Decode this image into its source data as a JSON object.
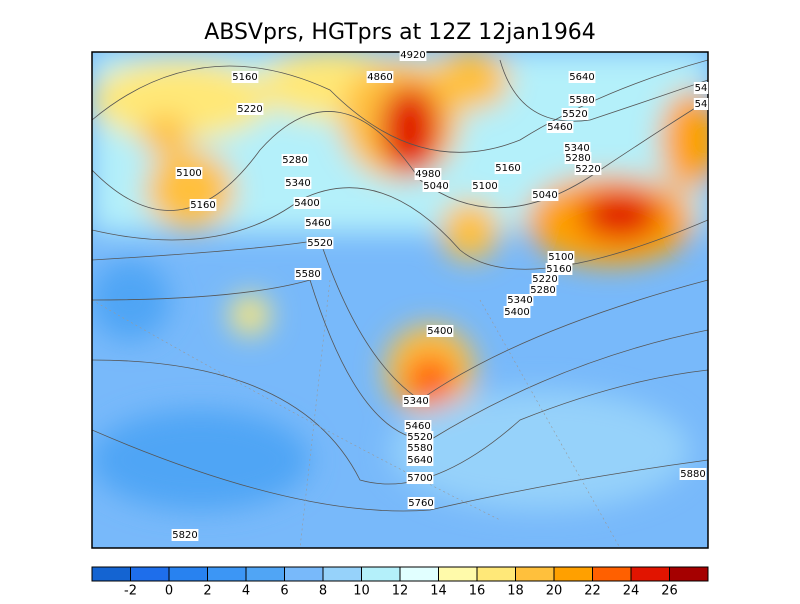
{
  "title": "ABSVprs, HGTprs at 12Z  12jan1964",
  "contour_labels": [
    "4920",
    "5160",
    "4860",
    "5640",
    "5580",
    "5220",
    "5520",
    "5460",
    "54",
    "54",
    "5340",
    "5280",
    "5220",
    "5280",
    "5160",
    "5100",
    "4980",
    "5040",
    "5100",
    "5040",
    "5340",
    "5160",
    "5400",
    "5460",
    "5520",
    "5100",
    "5160",
    "5220",
    "5280",
    "5580",
    "5340",
    "5400",
    "5400",
    "5340",
    "5460",
    "5520",
    "5580",
    "5640",
    "5700",
    "5880",
    "5760",
    "5820"
  ],
  "colorbar": {
    "colors": [
      "#1464d2",
      "#1e6eeb",
      "#2882f0",
      "#3c96f5",
      "#50a5f5",
      "#78b9fa",
      "#96d2fa",
      "#b4f0fa",
      "#e1ffff",
      "#fffaaa",
      "#ffe878",
      "#ffc03c",
      "#ffa000",
      "#ff6000",
      "#e11400",
      "#a50000"
    ],
    "ticks": [
      -2,
      0,
      2,
      4,
      6,
      8,
      10,
      12,
      14,
      16,
      18,
      20,
      22,
      24,
      26
    ]
  }
}
